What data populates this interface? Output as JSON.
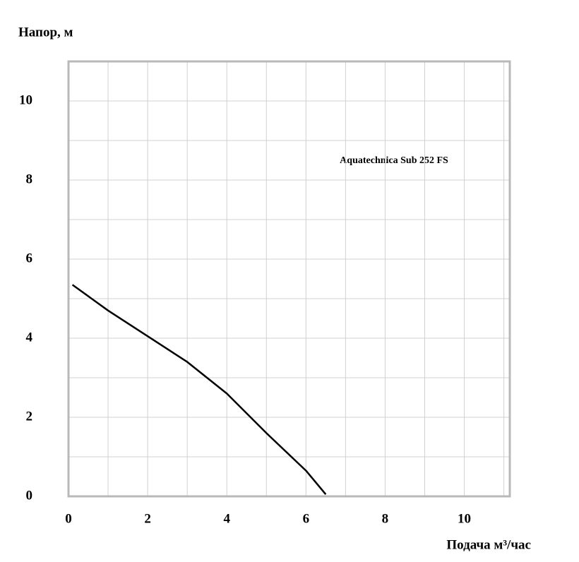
{
  "chart_data": {
    "type": "line",
    "y_label": "Напор, м",
    "x_label": "Подача  м³/час",
    "annotation": "Aquatechnica Sub 252 FS",
    "x": [
      0.1,
      1,
      2,
      3,
      4,
      5,
      6,
      6.5
    ],
    "series": [
      {
        "name": "Aquatechnica Sub 252 FS",
        "color": "#000000",
        "values": [
          5.35,
          4.7,
          4.05,
          3.4,
          2.6,
          1.6,
          0.65,
          0.05
        ]
      }
    ],
    "xlim": [
      0,
      11.15
    ],
    "ylim": [
      0,
      11
    ],
    "xticks": [
      0,
      2,
      4,
      6,
      8,
      10
    ],
    "yticks": [
      0,
      2,
      4,
      6,
      8,
      10
    ],
    "xgrid": [
      1,
      2,
      3,
      4,
      5,
      6,
      7,
      8,
      9,
      10,
      11
    ],
    "ygrid": [
      1,
      2,
      3,
      4,
      5,
      6,
      7,
      8,
      9,
      10
    ],
    "grid": true
  }
}
